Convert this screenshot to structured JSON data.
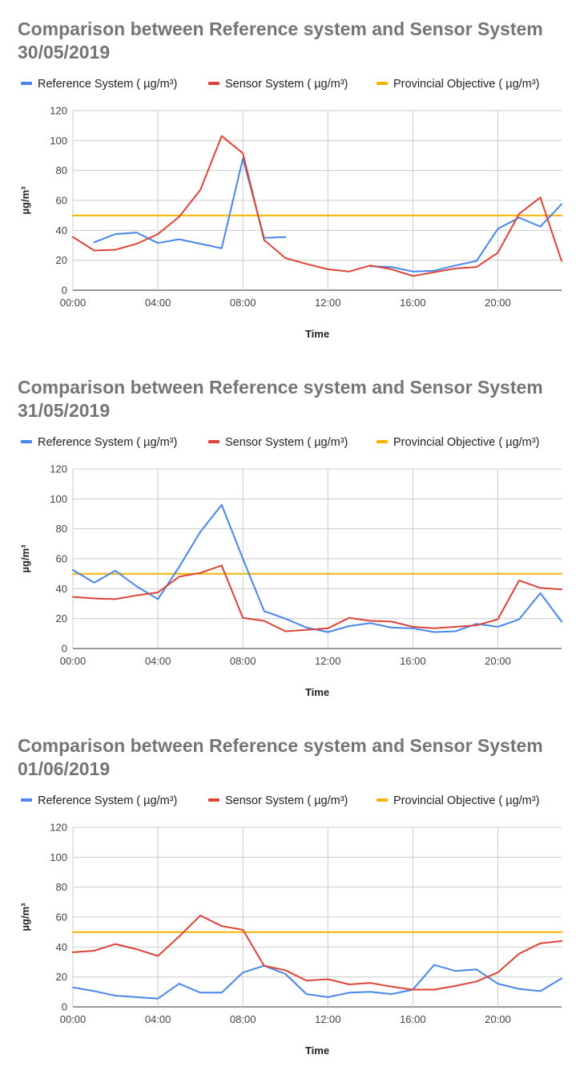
{
  "legend_labels": [
    "Reference System ( µg/m³)",
    "Sensor System ( µg/m³)",
    "Provincial Objective ( µg/m³)"
  ],
  "colors": {
    "reference": "#4a86e8",
    "sensor": "#db4437",
    "objective": "#f4b400",
    "grid": "#cccccc",
    "axis": "#333333",
    "title": "#757575"
  },
  "chart_data": [
    {
      "type": "line",
      "title": "Comparison between  Reference system and Sensor System",
      "subtitle": "30/05/2019",
      "xlabel": "Time",
      "ylabel": "µg/m³",
      "ylim": [
        0,
        120
      ],
      "yticks": [
        "0",
        "20",
        "40",
        "60",
        "80",
        "100",
        "120"
      ],
      "xticks": [
        "00:00",
        "04:00",
        "08:00",
        "12:00",
        "16:00",
        "20:00"
      ],
      "x": [
        0,
        1,
        2,
        3,
        4,
        5,
        6,
        7,
        8,
        9,
        10,
        11,
        12,
        13,
        14,
        15,
        16,
        17,
        18,
        19,
        20,
        21,
        22,
        23
      ],
      "grid": true,
      "legend": "top",
      "series": [
        {
          "name": "Reference System ( µg/m³)",
          "values": [
            null,
            32,
            37.5,
            38.5,
            31.5,
            34,
            31,
            28,
            88,
            35,
            35.5,
            null,
            null,
            null,
            16,
            15.5,
            12.5,
            13,
            16.5,
            19.5,
            41,
            48.5,
            42.5,
            57.5
          ]
        },
        {
          "name": "Sensor System ( µg/m³)",
          "values": [
            35.5,
            26.5,
            27,
            31,
            37.5,
            49,
            67,
            103,
            91.5,
            33.5,
            21.5,
            17.5,
            14,
            12.5,
            16.5,
            14,
            9.5,
            12,
            14.5,
            15.5,
            25,
            51,
            62,
            19.5
          ]
        },
        {
          "name": "Provincial Objective ( µg/m³)",
          "values": [
            50,
            50,
            50,
            50,
            50,
            50,
            50,
            50,
            50,
            50,
            50,
            50,
            50,
            50,
            50,
            50,
            50,
            50,
            50,
            50,
            50,
            50,
            50,
            50
          ]
        }
      ]
    },
    {
      "type": "line",
      "title": "Comparison between  Reference system and Sensor System",
      "subtitle": "31/05/2019",
      "xlabel": "Time",
      "ylabel": "µg/m³",
      "ylim": [
        0,
        120
      ],
      "yticks": [
        "0",
        "20",
        "40",
        "60",
        "80",
        "100",
        "120"
      ],
      "xticks": [
        "00:00",
        "04:00",
        "08:00",
        "12:00",
        "16:00",
        "20:00"
      ],
      "x": [
        0,
        1,
        2,
        3,
        4,
        5,
        6,
        7,
        8,
        9,
        10,
        11,
        12,
        13,
        14,
        15,
        16,
        17,
        18,
        19,
        20,
        21,
        22,
        23
      ],
      "grid": true,
      "legend": "top",
      "series": [
        {
          "name": "Reference System ( µg/m³)",
          "values": [
            52.5,
            44,
            52,
            41.5,
            33,
            54.5,
            78,
            96,
            60,
            25,
            20,
            14,
            11,
            15,
            17,
            14,
            13.5,
            11,
            11.5,
            16.5,
            14.5,
            19.5,
            37,
            18
          ]
        },
        {
          "name": "Sensor System ( µg/m³)",
          "values": [
            34.5,
            33.5,
            33,
            35.5,
            37.5,
            48,
            50.5,
            55.5,
            20.5,
            18.5,
            11.5,
            12.5,
            13.5,
            20.5,
            18.5,
            18,
            14.5,
            13.5,
            14.5,
            15.5,
            19.5,
            45.5,
            40.5,
            39.5
          ]
        },
        {
          "name": "Provincial Objective ( µg/m³)",
          "values": [
            50,
            50,
            50,
            50,
            50,
            50,
            50,
            50,
            50,
            50,
            50,
            50,
            50,
            50,
            50,
            50,
            50,
            50,
            50,
            50,
            50,
            50,
            50,
            50
          ]
        }
      ]
    },
    {
      "type": "line",
      "title": "Comparison between  Reference system and Sensor System",
      "subtitle": "01/06/2019",
      "xlabel": "Time",
      "ylabel": "µg/m³",
      "ylim": [
        0,
        120
      ],
      "yticks": [
        "0",
        "20",
        "40",
        "60",
        "80",
        "100",
        "120"
      ],
      "xticks": [
        "00:00",
        "04:00",
        "08:00",
        "12:00",
        "16:00",
        "20:00"
      ],
      "x": [
        0,
        1,
        2,
        3,
        4,
        5,
        6,
        7,
        8,
        9,
        10,
        11,
        12,
        13,
        14,
        15,
        16,
        17,
        18,
        19,
        20,
        21,
        22,
        23
      ],
      "grid": true,
      "legend": "top",
      "series": [
        {
          "name": "Reference System ( µg/m³)",
          "values": [
            13,
            10.5,
            7.5,
            6.5,
            5.5,
            15.5,
            9.5,
            9.5,
            23,
            27.5,
            22,
            8.5,
            6.5,
            9.5,
            10,
            8.5,
            11.5,
            28,
            24,
            25,
            15.5,
            12,
            10.5,
            19
          ]
        },
        {
          "name": "Sensor System ( µg/m³)",
          "values": [
            36.5,
            37.5,
            42,
            38.5,
            34,
            47,
            61,
            54,
            51.5,
            27.5,
            24.5,
            17.5,
            18.5,
            15,
            16,
            13.5,
            11.5,
            11.5,
            14,
            17,
            23,
            35.5,
            42.5,
            44
          ]
        },
        {
          "name": "Provincial Objective ( µg/m³)",
          "values": [
            50,
            50,
            50,
            50,
            50,
            50,
            50,
            50,
            50,
            50,
            50,
            50,
            50,
            50,
            50,
            50,
            50,
            50,
            50,
            50,
            50,
            50,
            50,
            50
          ]
        }
      ]
    }
  ]
}
